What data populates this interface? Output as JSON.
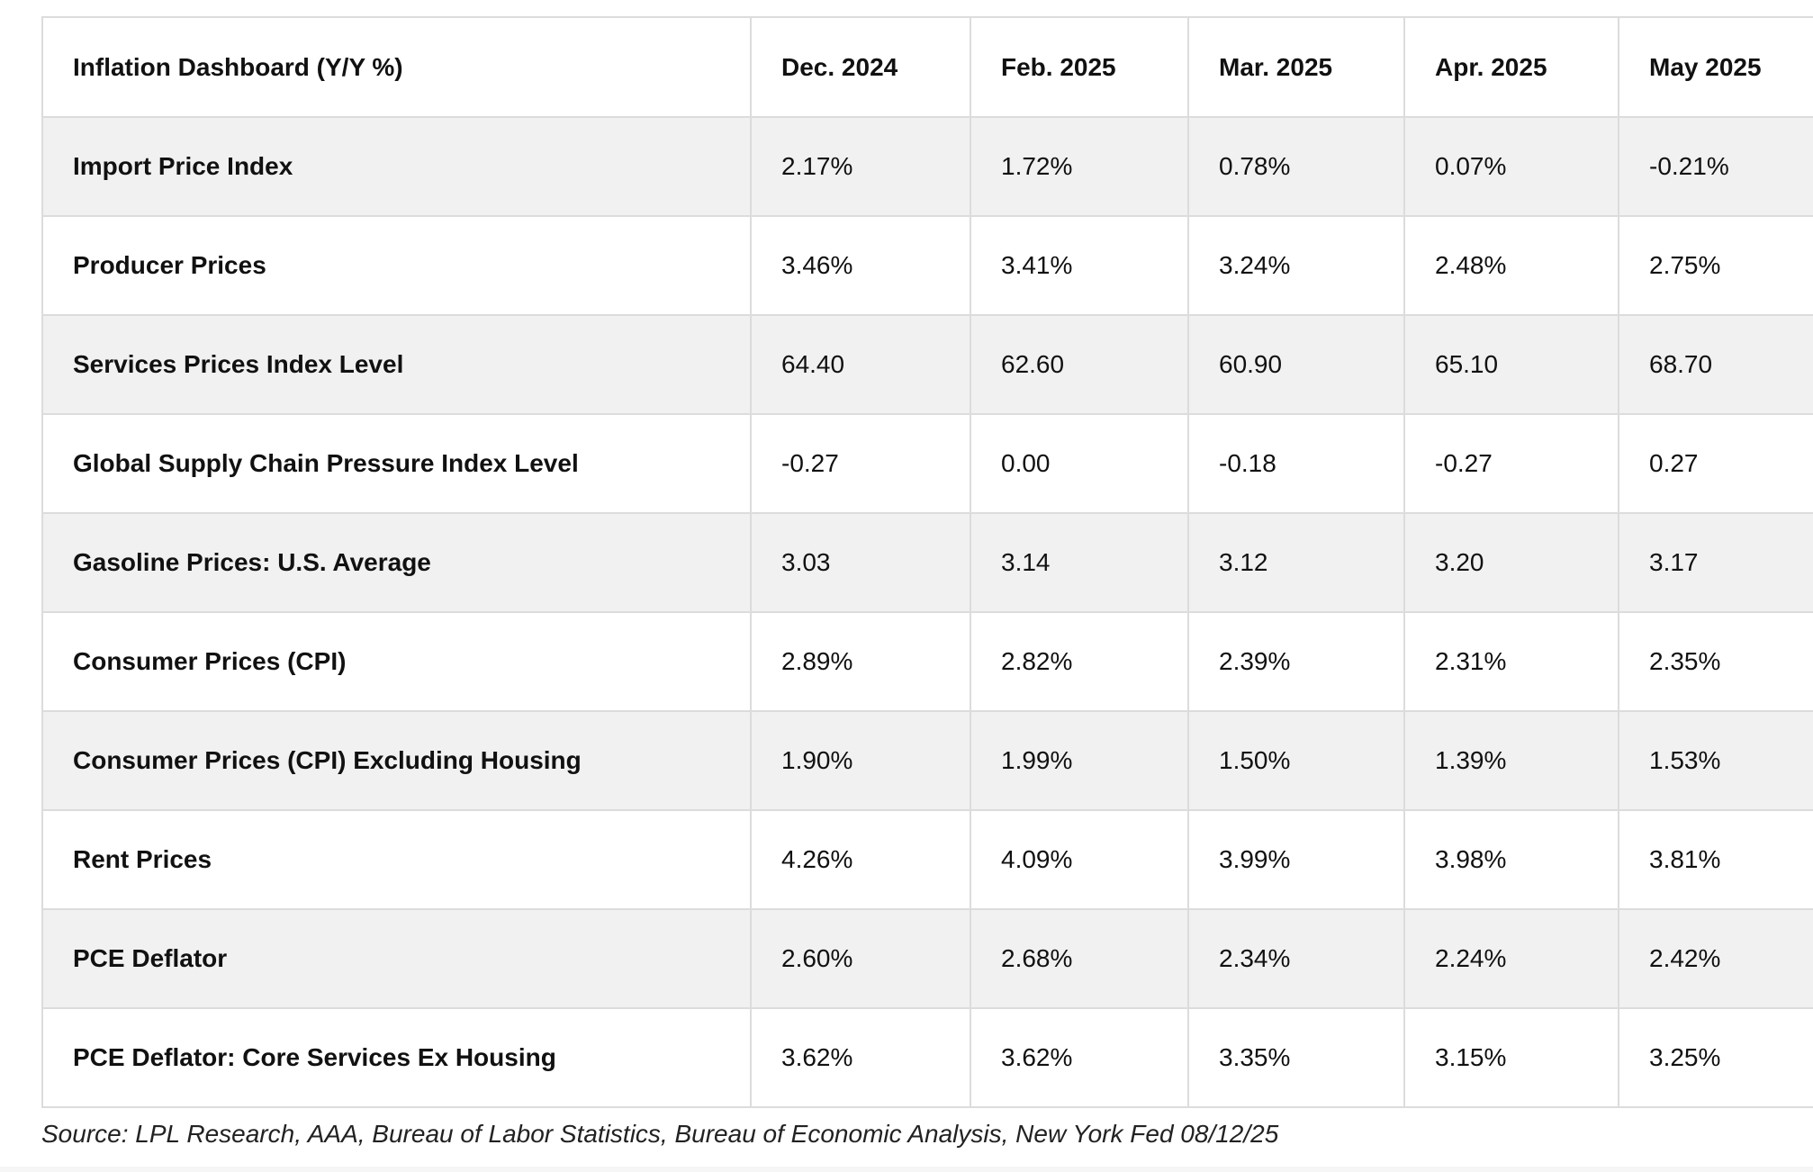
{
  "table": {
    "title": "Inflation Dashboard (Y/Y %)",
    "columns": [
      "Dec. 2024",
      "Feb. 2025",
      "Mar. 2025",
      "Apr. 2025",
      "May 2025"
    ],
    "rows": [
      {
        "label": "Import Price Index",
        "values": [
          "2.17%",
          "1.72%",
          "0.78%",
          "0.07%",
          "-0.21%"
        ]
      },
      {
        "label": "Producer Prices",
        "values": [
          "3.46%",
          "3.41%",
          "3.24%",
          "2.48%",
          "2.75%"
        ]
      },
      {
        "label": "Services Prices Index Level",
        "values": [
          "64.40",
          "62.60",
          "60.90",
          "65.10",
          "68.70"
        ]
      },
      {
        "label": "Global Supply Chain Pressure Index Level",
        "values": [
          "-0.27",
          "0.00",
          "-0.18",
          "-0.27",
          "0.27"
        ]
      },
      {
        "label": "Gasoline Prices: U.S. Average",
        "values": [
          "3.03",
          "3.14",
          "3.12",
          "3.20",
          "3.17"
        ]
      },
      {
        "label": "Consumer Prices (CPI)",
        "values": [
          "2.89%",
          "2.82%",
          "2.39%",
          "2.31%",
          "2.35%"
        ]
      },
      {
        "label": "Consumer Prices (CPI) Excluding Housing",
        "values": [
          "1.90%",
          "1.99%",
          "1.50%",
          "1.39%",
          "1.53%"
        ]
      },
      {
        "label": "Rent Prices",
        "values": [
          "4.26%",
          "4.09%",
          "3.99%",
          "3.98%",
          "3.81%"
        ]
      },
      {
        "label": "PCE Deflator",
        "values": [
          "2.60%",
          "2.68%",
          "2.34%",
          "2.24%",
          "2.42%"
        ]
      },
      {
        "label": "PCE Deflator: Core Services Ex Housing",
        "values": [
          "3.62%",
          "3.62%",
          "3.35%",
          "3.15%",
          "3.25%"
        ]
      }
    ]
  },
  "source": "Source: LPL Research, AAA, Bureau of Labor Statistics, Bureau of Economic Analysis, New York Fed 08/12/25"
}
